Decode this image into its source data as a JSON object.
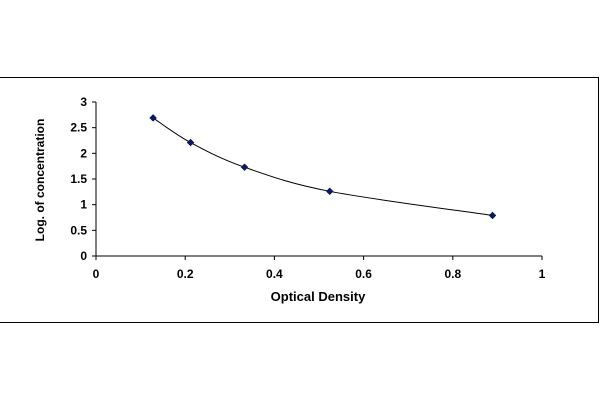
{
  "chart_data": {
    "type": "scatter",
    "title": "",
    "xlabel": "Optical Density",
    "ylabel": "Log. of concentration",
    "xlim": [
      0,
      1
    ],
    "ylim": [
      0,
      3
    ],
    "x_ticks": [
      "0",
      "0.2",
      "0.4",
      "0.6",
      "0.8",
      "1"
    ],
    "y_ticks": [
      "0",
      "0.5",
      "1",
      "1.5",
      "2",
      "2.5",
      "3"
    ],
    "grid": false,
    "legend": "none",
    "series": [
      {
        "points": [
          {
            "x": 0.128,
            "y": 2.69
          },
          {
            "x": 0.212,
            "y": 2.21
          },
          {
            "x": 0.333,
            "y": 1.73
          },
          {
            "x": 0.524,
            "y": 1.26
          },
          {
            "x": 0.889,
            "y": 0.79
          }
        ],
        "color": "#0a1a60",
        "fit_line": true
      }
    ]
  }
}
